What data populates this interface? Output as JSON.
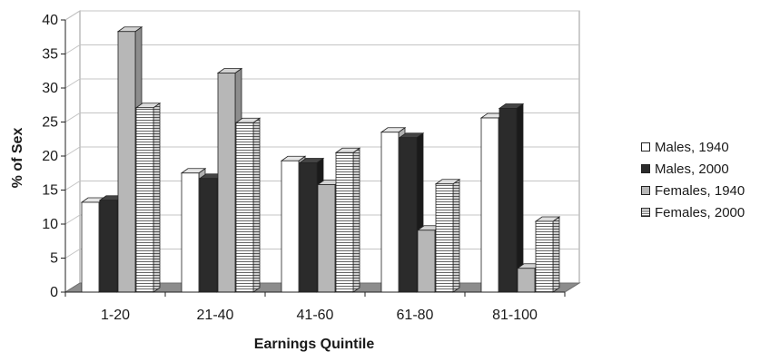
{
  "chart_data": {
    "type": "bar",
    "title": "",
    "xlabel": "Earnings Quintile",
    "ylabel": "% of Sex",
    "categories": [
      "1-20",
      "21-40",
      "41-60",
      "61-80",
      "81-100"
    ],
    "ylim": [
      0,
      40
    ],
    "yticks": [
      0,
      5,
      10,
      15,
      20,
      25,
      30,
      35,
      40
    ],
    "grid": true,
    "legend_position": "right",
    "series": [
      {
        "name": "Males, 1940",
        "values": [
          13.2,
          17.5,
          19.3,
          23.5,
          25.6
        ],
        "color": "#ffffff"
      },
      {
        "name": "Males, 2000",
        "values": [
          13.5,
          16.7,
          19.0,
          22.7,
          27.0
        ],
        "color": "#2b2b2b"
      },
      {
        "name": "Females, 1940",
        "values": [
          38.3,
          32.2,
          15.8,
          9.1,
          3.5
        ],
        "color": "#b7b7b7"
      },
      {
        "name": "Females, 2000",
        "values": [
          27.1,
          24.9,
          20.5,
          15.9,
          10.4
        ],
        "color": "#ffffff",
        "pattern": "horizontal-lines"
      }
    ]
  }
}
